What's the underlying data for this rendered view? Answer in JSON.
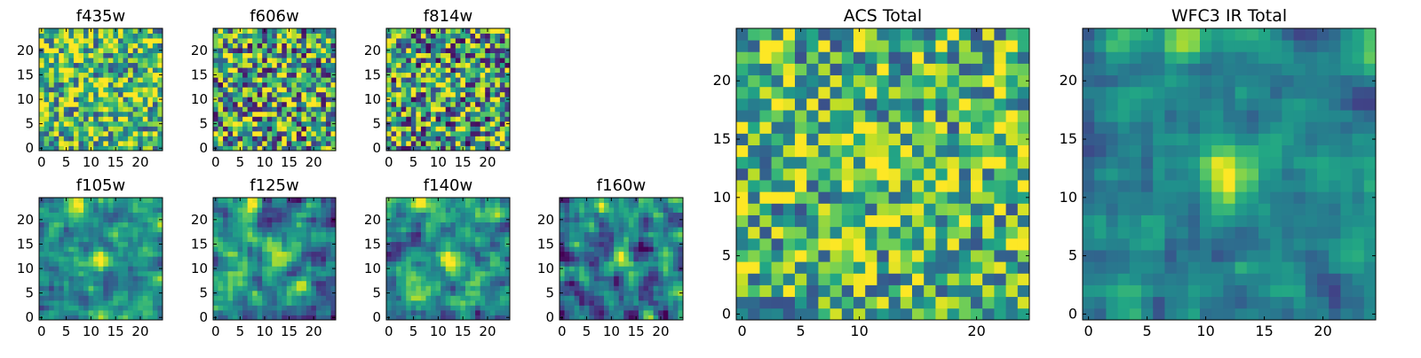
{
  "chart_data": [
    {
      "type": "heatmap",
      "title": "f435w",
      "grid_size": 25,
      "xlim": [
        0,
        24
      ],
      "ylim": [
        0,
        24
      ],
      "xticks": [
        0,
        5,
        10,
        15,
        20
      ],
      "yticks": [
        0,
        5,
        10,
        15,
        20
      ],
      "colormap": "viridis",
      "texture": "uniform_noise",
      "noise_amplitude": 0.45,
      "background_level": 0.68,
      "peak_center": [
        13,
        12
      ],
      "peak_level": 0.15,
      "seed": 11
    },
    {
      "type": "heatmap",
      "title": "f606w",
      "grid_size": 25,
      "xlim": [
        0,
        24
      ],
      "ylim": [
        0,
        24
      ],
      "xticks": [
        0,
        5,
        10,
        15,
        20
      ],
      "yticks": [
        0,
        5,
        10,
        15,
        20
      ],
      "colormap": "viridis",
      "texture": "noise",
      "noise_amplitude": 0.55,
      "background_level": 0.58,
      "peak_center": [
        13,
        12
      ],
      "peak_level": 0.2,
      "seed": 23
    },
    {
      "type": "heatmap",
      "title": "f814w",
      "grid_size": 25,
      "xlim": [
        0,
        24
      ],
      "ylim": [
        0,
        24
      ],
      "xticks": [
        0,
        5,
        10,
        15,
        20
      ],
      "yticks": [
        0,
        5,
        10,
        15,
        20
      ],
      "colormap": "viridis",
      "texture": "noise",
      "noise_amplitude": 0.55,
      "background_level": 0.55,
      "peak_center": [
        12,
        12
      ],
      "peak_level": 0.35,
      "seed": 37
    },
    {
      "type": "heatmap",
      "title": "f105w",
      "grid_size": 25,
      "xlim": [
        0,
        24
      ],
      "ylim": [
        0,
        24
      ],
      "xticks": [
        0,
        5,
        10,
        15,
        20
      ],
      "yticks": [
        0,
        5,
        10,
        15,
        20
      ],
      "colormap": "viridis",
      "texture": "smooth",
      "noise_amplitude": 0.3,
      "background_level": 0.5,
      "peak_center": [
        12,
        12
      ],
      "peak_level": 0.5,
      "top_blob": [
        8,
        23
      ],
      "seed": 41
    },
    {
      "type": "heatmap",
      "title": "f125w",
      "grid_size": 25,
      "xlim": [
        0,
        24
      ],
      "ylim": [
        0,
        24
      ],
      "xticks": [
        0,
        5,
        10,
        15,
        20
      ],
      "yticks": [
        0,
        5,
        10,
        15,
        20
      ],
      "colormap": "viridis",
      "texture": "smooth",
      "noise_amplitude": 0.35,
      "background_level": 0.48,
      "peak_center": [
        13,
        12
      ],
      "peak_level": 0.5,
      "top_blob": [
        8,
        23
      ],
      "seed": 53
    },
    {
      "type": "heatmap",
      "title": "f140w",
      "grid_size": 25,
      "xlim": [
        0,
        24
      ],
      "ylim": [
        0,
        24
      ],
      "xticks": [
        0,
        5,
        10,
        15,
        20
      ],
      "yticks": [
        0,
        5,
        10,
        15,
        20
      ],
      "colormap": "viridis",
      "texture": "smooth",
      "noise_amplitude": 0.35,
      "background_level": 0.52,
      "peak_center": [
        12,
        12
      ],
      "peak_level": 0.45,
      "top_blob": [
        7,
        23
      ],
      "seed": 67
    },
    {
      "type": "heatmap",
      "title": "f160w",
      "grid_size": 25,
      "xlim": [
        0,
        24
      ],
      "ylim": [
        0,
        24
      ],
      "xticks": [
        0,
        5,
        10,
        15,
        20
      ],
      "yticks": [
        0,
        5,
        10,
        15,
        20
      ],
      "colormap": "viridis",
      "texture": "smooth",
      "noise_amplitude": 0.4,
      "background_level": 0.42,
      "peak_center": [
        12,
        12
      ],
      "peak_level": 0.55,
      "top_blob": [
        8,
        23
      ],
      "seed": 79
    },
    {
      "type": "heatmap",
      "title": "ACS Total",
      "grid_size": 25,
      "xlim": [
        0,
        24
      ],
      "ylim": [
        0,
        24
      ],
      "xticks": [
        0,
        10,
        20
      ],
      "xtick_labels_extra": [
        5
      ],
      "yticks": [
        0,
        5,
        10,
        15,
        20
      ],
      "colormap": "viridis",
      "texture": "noise",
      "noise_amplitude": 0.4,
      "background_level": 0.65,
      "peak_center": [
        12,
        13
      ],
      "peak_level": 0.3,
      "seed": 97
    },
    {
      "type": "heatmap",
      "title": "WFC3 IR Total",
      "grid_size": 25,
      "xlim": [
        0,
        24
      ],
      "ylim": [
        0,
        24
      ],
      "xticks": [
        0,
        5,
        10,
        15,
        20
      ],
      "yticks": [
        0,
        5,
        10,
        15,
        20
      ],
      "colormap": "viridis",
      "texture": "smooth",
      "noise_amplitude": 0.22,
      "background_level": 0.45,
      "peak_center": [
        12,
        12
      ],
      "peak_level": 0.55,
      "top_blob": [
        8,
        23
      ],
      "seed": 113
    }
  ]
}
